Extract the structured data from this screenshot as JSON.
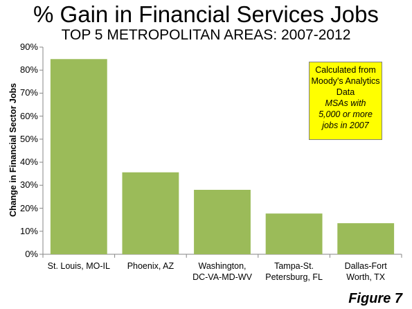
{
  "chart_data": {
    "type": "bar",
    "title": "% Gain in Financial Services Jobs",
    "subtitle": "TOP 5 METROPOLITAN AREAS: 2007-2012",
    "ylabel": "Change in Financial Sector Jobs",
    "categories": [
      [
        "St. Louis, MO-IL"
      ],
      [
        "Phoenix, AZ"
      ],
      [
        "Washington,",
        "DC-VA-MD-WV"
      ],
      [
        "Tampa-St.",
        "Petersburg, FL"
      ],
      [
        "Dallas-Fort",
        "Worth, TX"
      ]
    ],
    "values": [
      84.8,
      35.6,
      28.0,
      17.7,
      13.5
    ],
    "ylim": [
      0,
      90
    ],
    "yticks": [
      "0%",
      "10%",
      "20%",
      "30%",
      "40%",
      "50%",
      "60%",
      "70%",
      "80%",
      "90%"
    ],
    "grid": false,
    "bar_color": "#9bbb59",
    "note": {
      "lines": [
        "Calculated from",
        "Moody's Analytics",
        "Data"
      ],
      "italic_lines": [
        "MSAs with",
        "5,000 or more",
        "jobs in 2007"
      ],
      "background": "#ffff00"
    }
  },
  "figure_label": "Figure 7"
}
